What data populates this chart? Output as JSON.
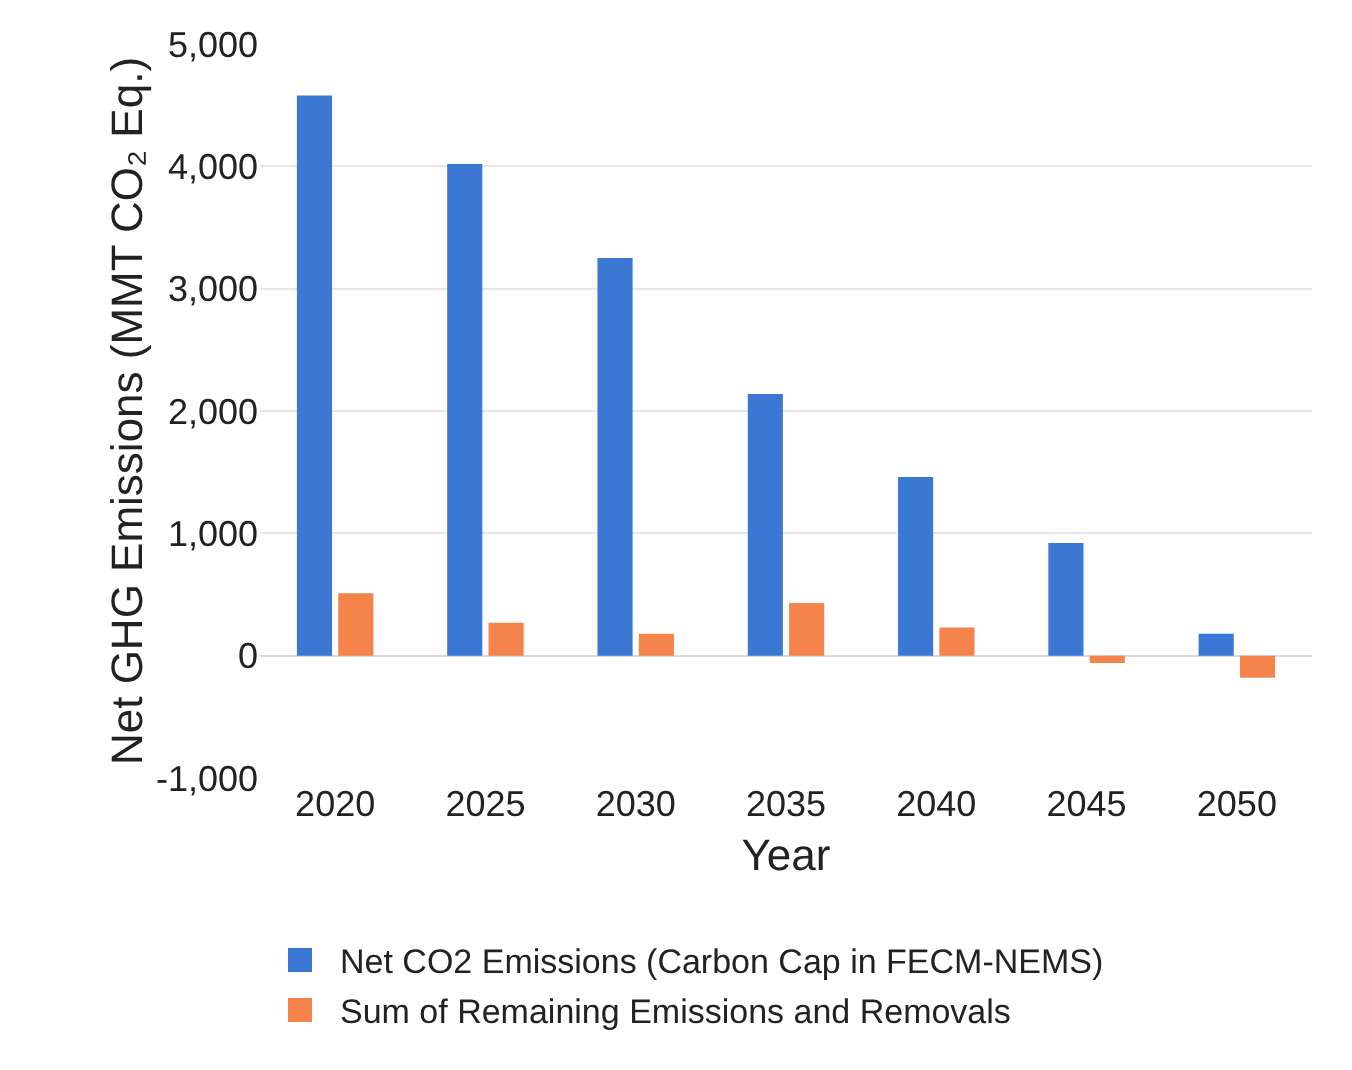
{
  "chart_data": {
    "type": "bar",
    "xlabel": "Year",
    "ylabel": "Net GHG Emissions (MMT CO₂ Eq.)",
    "categories": [
      "2020",
      "2025",
      "2030",
      "2035",
      "2040",
      "2045",
      "2050"
    ],
    "series": [
      {
        "name": "Net CO2 Emissions (Carbon Cap in FECM-NEMS)",
        "color": "#3a78d4",
        "values": [
          4580,
          4020,
          3250,
          2140,
          1460,
          920,
          180
        ]
      },
      {
        "name": "Sum of Remaining Emissions and Removals",
        "color": "#f4844c",
        "values": [
          510,
          270,
          180,
          430,
          230,
          -60,
          -180
        ]
      }
    ],
    "ylim": [
      -1000,
      5000
    ],
    "yticks": [
      {
        "value": -1000,
        "label": "-1,000"
      },
      {
        "value": 0,
        "label": "0"
      },
      {
        "value": 1000,
        "label": "1,000"
      },
      {
        "value": 2000,
        "label": "2,000"
      },
      {
        "value": 3000,
        "label": "3,000"
      },
      {
        "value": 4000,
        "label": "4,000"
      },
      {
        "value": 5000,
        "label": "5,000"
      }
    ],
    "grid": "y",
    "legend": "bottom"
  }
}
